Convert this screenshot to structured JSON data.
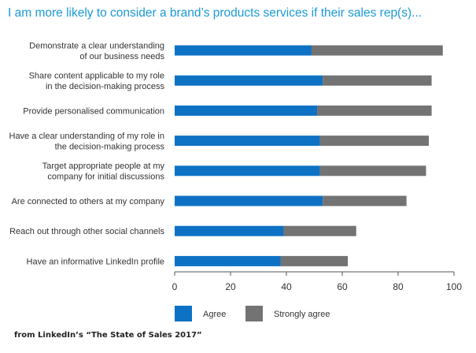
{
  "title": "I am more likely to consider a brand’s products services if their sales rep(s)...",
  "source": "from LinkedIn’s “The State of Sales 2017”",
  "colors": {
    "agree": "#0e72c4",
    "strongly_agree": "#737373",
    "title": "#1a9bd7"
  },
  "chart_data": {
    "type": "bar",
    "orientation": "horizontal",
    "stacked": true,
    "categories": [
      [
        "Demonstrate a clear understanding",
        "of our business needs"
      ],
      [
        "Share content applicable to my role",
        "in the decision-making process"
      ],
      [
        "Provide personalised communication"
      ],
      [
        "Have a clear understanding of my role in",
        "the decision-making process"
      ],
      [
        "Target appropriate people at my",
        "company for initial discussions"
      ],
      [
        "Are connected to others at my company"
      ],
      [
        "Reach out through other social channels"
      ],
      [
        "Have an informative LinkedIn profile"
      ]
    ],
    "series": [
      {
        "name": "Agree",
        "values": [
          49,
          53,
          51,
          52,
          52,
          53,
          39,
          38
        ]
      },
      {
        "name": "Strongly agree",
        "values": [
          47,
          39,
          41,
          39,
          38,
          30,
          26,
          24
        ]
      }
    ],
    "xlim": [
      0,
      100
    ],
    "xticks": [
      0,
      20,
      40,
      60,
      80,
      100
    ],
    "legend_position": "bottom-left",
    "grid": false
  }
}
